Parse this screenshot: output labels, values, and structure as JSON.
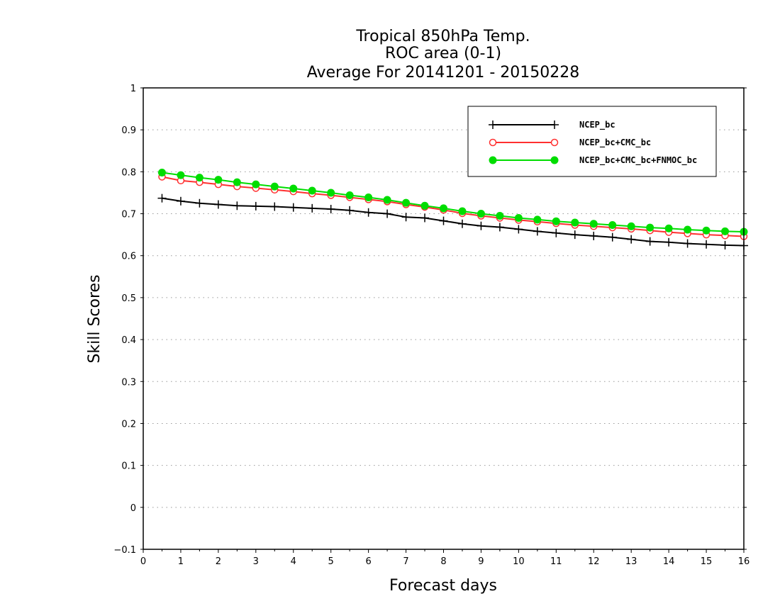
{
  "chart_data": {
    "type": "line",
    "title": [
      "Tropical 850hPa Temp.",
      "ROC area (0-1)",
      "Average For 20141201 - 20150228"
    ],
    "xlabel": "Forecast days",
    "ylabel": "Skill Scores",
    "xlim": [
      0,
      16
    ],
    "ylim": [
      -0.1,
      1
    ],
    "xticks": [
      "0",
      "1",
      "2",
      "3",
      "4",
      "5",
      "6",
      "7",
      "8",
      "9",
      "10",
      "11",
      "12",
      "13",
      "14",
      "15",
      "16"
    ],
    "yticks": [
      "−0.1",
      "0",
      "0.1",
      "0.2",
      "0.3",
      "0.4",
      "0.5",
      "0.6",
      "0.7",
      "0.8",
      "0.9",
      "1"
    ],
    "grid": true,
    "legend_position": "top-right",
    "x": [
      0.5,
      1,
      1.5,
      2,
      2.5,
      3,
      3.5,
      4,
      4.5,
      5,
      5.5,
      6,
      6.5,
      7,
      7.5,
      8,
      8.5,
      9,
      9.5,
      10,
      10.5,
      11,
      11.5,
      12,
      12.5,
      13,
      13.5,
      14,
      14.5,
      15,
      15.5,
      16
    ],
    "series": [
      {
        "name": "NCEP_bc",
        "color": "#000000",
        "marker": "plus",
        "values": [
          0.737,
          0.73,
          0.725,
          0.722,
          0.719,
          0.718,
          0.717,
          0.715,
          0.713,
          0.711,
          0.708,
          0.703,
          0.7,
          0.692,
          0.69,
          0.683,
          0.676,
          0.671,
          0.668,
          0.663,
          0.658,
          0.654,
          0.65,
          0.647,
          0.644,
          0.639,
          0.634,
          0.632,
          0.629,
          0.627,
          0.625,
          0.624
        ]
      },
      {
        "name": "NCEP_bc+CMC_bc",
        "color": "#ff3030",
        "marker": "open-circle",
        "values": [
          0.788,
          0.779,
          0.775,
          0.77,
          0.765,
          0.761,
          0.757,
          0.753,
          0.748,
          0.744,
          0.739,
          0.734,
          0.729,
          0.722,
          0.716,
          0.709,
          0.701,
          0.695,
          0.69,
          0.685,
          0.681,
          0.677,
          0.673,
          0.67,
          0.667,
          0.664,
          0.66,
          0.656,
          0.653,
          0.65,
          0.648,
          0.646
        ]
      },
      {
        "name": "NCEP_bc+CMC_bc+FNMOC_bc",
        "color": "#00dd00",
        "marker": "filled-circle",
        "values": [
          0.798,
          0.792,
          0.786,
          0.781,
          0.775,
          0.77,
          0.765,
          0.76,
          0.755,
          0.75,
          0.744,
          0.739,
          0.733,
          0.726,
          0.719,
          0.713,
          0.706,
          0.7,
          0.695,
          0.69,
          0.686,
          0.682,
          0.679,
          0.676,
          0.673,
          0.67,
          0.667,
          0.665,
          0.662,
          0.66,
          0.658,
          0.657
        ]
      }
    ]
  }
}
